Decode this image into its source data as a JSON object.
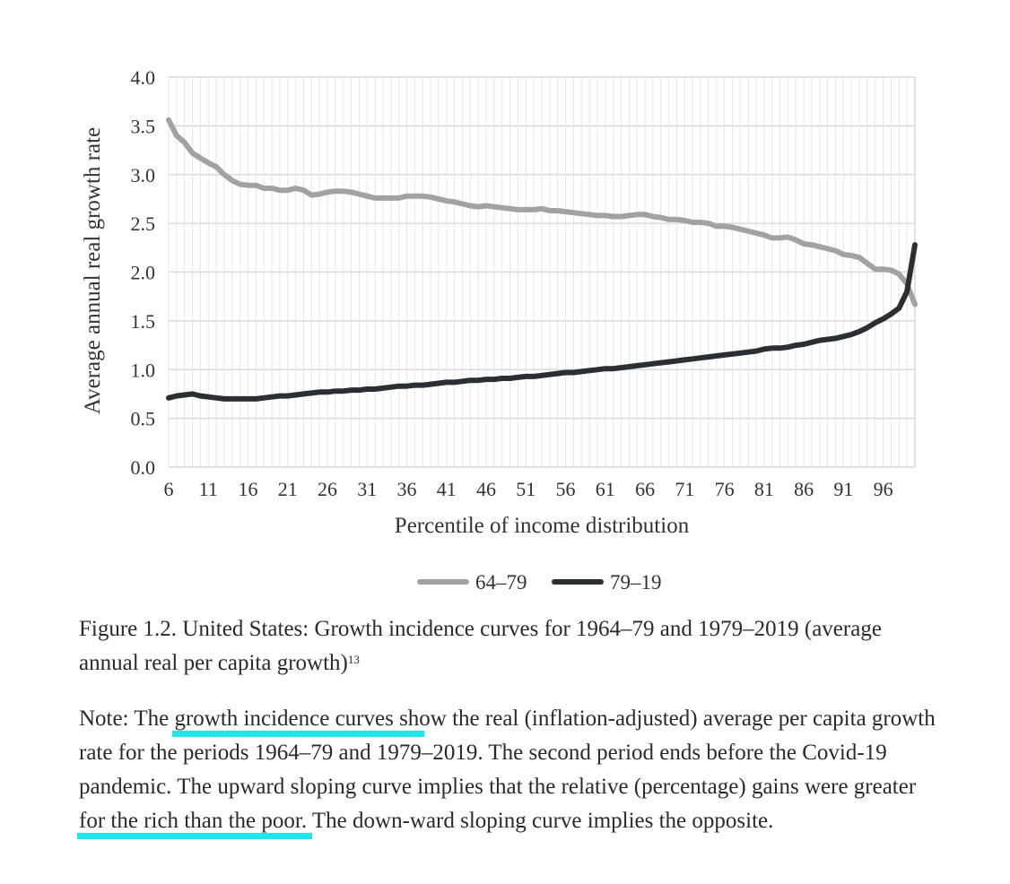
{
  "chart_data": {
    "type": "line",
    "title": "",
    "xlabel": "Percentile of income distribution",
    "ylabel": "Average annual real growth rate",
    "ylim": [
      0,
      4
    ],
    "yticks": [
      "0.0",
      "0.5",
      "1.0",
      "1.5",
      "2.0",
      "2.5",
      "3.0",
      "3.5",
      "4.0"
    ],
    "xlim": [
      6,
      100
    ],
    "xticks": [
      "6",
      "11",
      "16",
      "21",
      "26",
      "31",
      "36",
      "41",
      "46",
      "51",
      "56",
      "61",
      "66",
      "71",
      "76",
      "81",
      "86",
      "91",
      "96"
    ],
    "grid": true,
    "legend_position": "bottom-center",
    "series": [
      {
        "name": "64–79",
        "color": "#a2a2a2",
        "x": [
          6,
          7,
          8,
          9,
          10,
          11,
          12,
          13,
          14,
          15,
          16,
          17,
          18,
          19,
          20,
          21,
          22,
          23,
          24,
          25,
          26,
          27,
          28,
          29,
          30,
          31,
          32,
          33,
          34,
          35,
          36,
          37,
          38,
          39,
          40,
          41,
          42,
          43,
          44,
          45,
          46,
          47,
          48,
          49,
          50,
          51,
          52,
          53,
          54,
          55,
          56,
          57,
          58,
          59,
          60,
          61,
          62,
          63,
          64,
          65,
          66,
          67,
          68,
          69,
          70,
          71,
          72,
          73,
          74,
          75,
          76,
          77,
          78,
          79,
          80,
          81,
          82,
          83,
          84,
          85,
          86,
          87,
          88,
          89,
          90,
          91,
          92,
          93,
          94,
          95,
          96,
          97,
          98,
          99,
          100
        ],
        "values": [
          3.56,
          3.4,
          3.33,
          3.22,
          3.17,
          3.12,
          3.08,
          3.0,
          2.94,
          2.9,
          2.89,
          2.89,
          2.86,
          2.86,
          2.84,
          2.84,
          2.86,
          2.84,
          2.79,
          2.8,
          2.82,
          2.83,
          2.83,
          2.82,
          2.8,
          2.78,
          2.76,
          2.76,
          2.76,
          2.76,
          2.78,
          2.78,
          2.78,
          2.77,
          2.75,
          2.73,
          2.72,
          2.7,
          2.68,
          2.67,
          2.68,
          2.67,
          2.66,
          2.65,
          2.64,
          2.64,
          2.64,
          2.65,
          2.63,
          2.63,
          2.62,
          2.61,
          2.6,
          2.59,
          2.58,
          2.58,
          2.57,
          2.57,
          2.58,
          2.59,
          2.59,
          2.57,
          2.56,
          2.54,
          2.54,
          2.53,
          2.51,
          2.51,
          2.5,
          2.47,
          2.47,
          2.46,
          2.44,
          2.42,
          2.4,
          2.38,
          2.35,
          2.35,
          2.36,
          2.33,
          2.29,
          2.28,
          2.26,
          2.24,
          2.22,
          2.18,
          2.17,
          2.15,
          2.09,
          2.03,
          2.03,
          2.02,
          1.98,
          1.88,
          1.67
        ]
      },
      {
        "name": "79–19",
        "color": "#2b2e33",
        "x": [
          6,
          7,
          8,
          9,
          10,
          11,
          12,
          13,
          14,
          15,
          16,
          17,
          18,
          19,
          20,
          21,
          22,
          23,
          24,
          25,
          26,
          27,
          28,
          29,
          30,
          31,
          32,
          33,
          34,
          35,
          36,
          37,
          38,
          39,
          40,
          41,
          42,
          43,
          44,
          45,
          46,
          47,
          48,
          49,
          50,
          51,
          52,
          53,
          54,
          55,
          56,
          57,
          58,
          59,
          60,
          61,
          62,
          63,
          64,
          65,
          66,
          67,
          68,
          69,
          70,
          71,
          72,
          73,
          74,
          75,
          76,
          77,
          78,
          79,
          80,
          81,
          82,
          83,
          84,
          85,
          86,
          87,
          88,
          89,
          90,
          91,
          92,
          93,
          94,
          95,
          96,
          97,
          98,
          99,
          100
        ],
        "values": [
          0.71,
          0.73,
          0.74,
          0.75,
          0.73,
          0.72,
          0.71,
          0.7,
          0.7,
          0.7,
          0.7,
          0.7,
          0.71,
          0.72,
          0.73,
          0.73,
          0.74,
          0.75,
          0.76,
          0.77,
          0.77,
          0.78,
          0.78,
          0.79,
          0.79,
          0.8,
          0.8,
          0.81,
          0.82,
          0.83,
          0.83,
          0.84,
          0.84,
          0.85,
          0.86,
          0.87,
          0.87,
          0.88,
          0.89,
          0.89,
          0.9,
          0.9,
          0.91,
          0.91,
          0.92,
          0.93,
          0.93,
          0.94,
          0.95,
          0.96,
          0.97,
          0.97,
          0.98,
          0.99,
          1.0,
          1.01,
          1.01,
          1.02,
          1.03,
          1.04,
          1.05,
          1.06,
          1.07,
          1.08,
          1.09,
          1.1,
          1.11,
          1.12,
          1.13,
          1.14,
          1.15,
          1.16,
          1.17,
          1.18,
          1.19,
          1.21,
          1.22,
          1.22,
          1.23,
          1.25,
          1.26,
          1.28,
          1.3,
          1.31,
          1.32,
          1.34,
          1.36,
          1.39,
          1.43,
          1.48,
          1.52,
          1.57,
          1.63,
          1.8,
          2.28
        ]
      }
    ]
  },
  "caption": {
    "part1": "Figure 1.2. United States: Growth incidence curves for 1964–79 and 1979–2019 (average annual real per capita growth)",
    "footnote": "13"
  },
  "note": {
    "t1": "Note: The ",
    "h1": "growth incidence curves sh",
    "t2": "ow the real (inflation-adjusted) average per capita growth rate for the periods 1964–79 and 1979–2019. The second period ends before the Covid-19 pandemic. The upward sloping curve implies that the relative (percentage) gains were greater ",
    "h2": "for the rich than the poor.",
    "t3": " The down-ward sloping curve implies the opposite.",
    "highlight_color": "#22e4ea"
  }
}
